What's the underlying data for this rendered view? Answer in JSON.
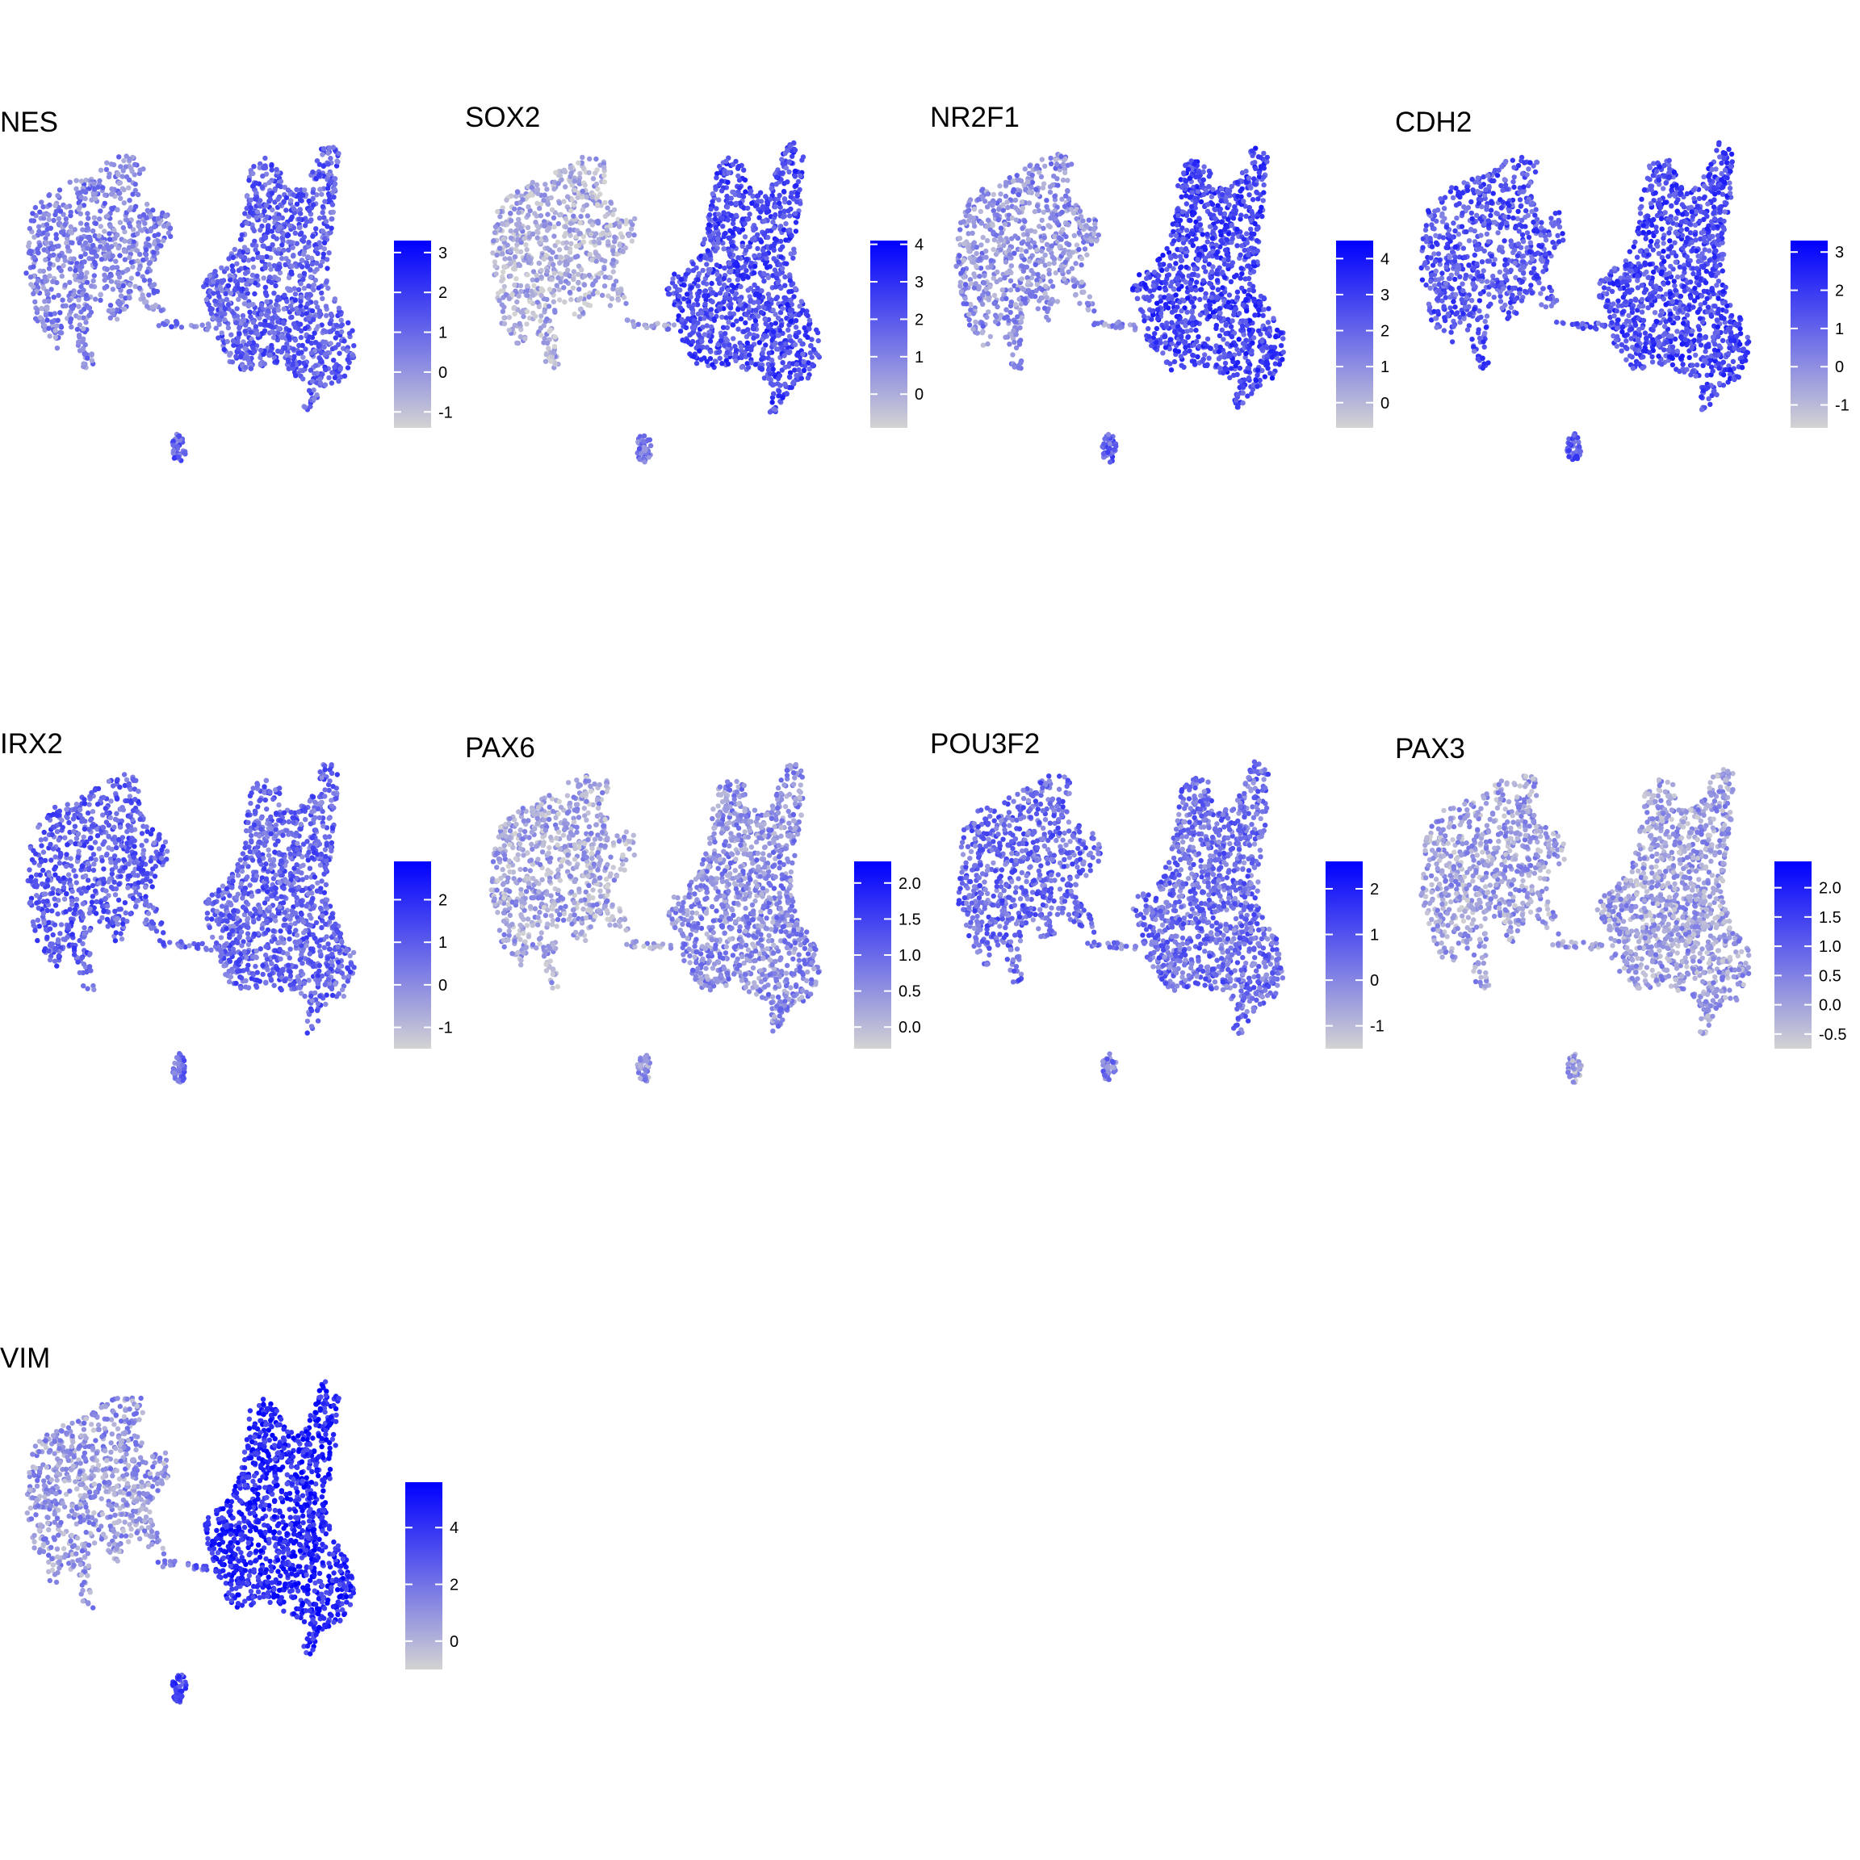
{
  "figure": {
    "background": "#ffffff"
  },
  "colors": {
    "low": "#d3d3d3",
    "high": "#0000ff",
    "tick": "#ffffff"
  },
  "chart_data": [
    {
      "type": "scatter",
      "title": "NES",
      "ticks": [
        -1,
        0,
        1,
        2,
        3
      ],
      "range": [
        -1.4,
        3.3
      ],
      "cluster_levels": {
        "left": 0.38,
        "right": 0.55,
        "bridge": 0.45,
        "bottom": 0.55
      }
    },
    {
      "type": "scatter",
      "title": "SOX2",
      "ticks": [
        0,
        1,
        2,
        3,
        4
      ],
      "range": [
        -0.9,
        4.1
      ],
      "cluster_levels": {
        "left": 0.18,
        "right": 0.65,
        "bridge": 0.3,
        "bottom": 0.45
      }
    },
    {
      "type": "scatter",
      "title": "NR2F1",
      "ticks": [
        0,
        1,
        2,
        3,
        4
      ],
      "range": [
        -0.7,
        4.5
      ],
      "cluster_levels": {
        "left": 0.32,
        "right": 0.68,
        "bridge": 0.35,
        "bottom": 0.55
      }
    },
    {
      "type": "scatter",
      "title": "CDH2",
      "ticks": [
        -1,
        0,
        1,
        2,
        3
      ],
      "range": [
        -1.6,
        3.3
      ],
      "cluster_levels": {
        "left": 0.6,
        "right": 0.66,
        "bridge": 0.55,
        "bottom": 0.55
      }
    },
    {
      "type": "scatter",
      "title": "IRX2",
      "ticks": [
        -1,
        0,
        1,
        2
      ],
      "range": [
        -1.5,
        2.9
      ],
      "cluster_levels": {
        "left": 0.55,
        "right": 0.52,
        "bridge": 0.5,
        "bottom": 0.45
      }
    },
    {
      "type": "scatter",
      "title": "PAX6",
      "ticks": [
        "0.0",
        "0.5",
        "1.0",
        "1.5",
        "2.0"
      ],
      "range": [
        -0.3,
        2.3
      ],
      "cluster_levels": {
        "left": 0.22,
        "right": 0.33,
        "bridge": 0.25,
        "bottom": 0.25
      }
    },
    {
      "type": "scatter",
      "title": "POU3F2",
      "ticks": [
        -1,
        0,
        1,
        2
      ],
      "range": [
        -1.5,
        2.6
      ],
      "cluster_levels": {
        "left": 0.5,
        "right": 0.48,
        "bridge": 0.4,
        "bottom": 0.4
      }
    },
    {
      "type": "scatter",
      "title": "PAX3",
      "ticks": [
        "-0.5",
        "0.0",
        "0.5",
        "1.0",
        "1.5",
        "2.0"
      ],
      "range": [
        -0.75,
        2.45
      ],
      "cluster_levels": {
        "left": 0.24,
        "right": 0.25,
        "bridge": 0.22,
        "bottom": 0.22
      }
    },
    {
      "type": "scatter",
      "title": "VIM",
      "ticks": [
        0,
        2,
        4
      ],
      "range": [
        -1.0,
        5.6
      ],
      "cluster_levels": {
        "left": 0.28,
        "right": 0.82,
        "bridge": 0.5,
        "bottom": 0.7
      }
    }
  ]
}
